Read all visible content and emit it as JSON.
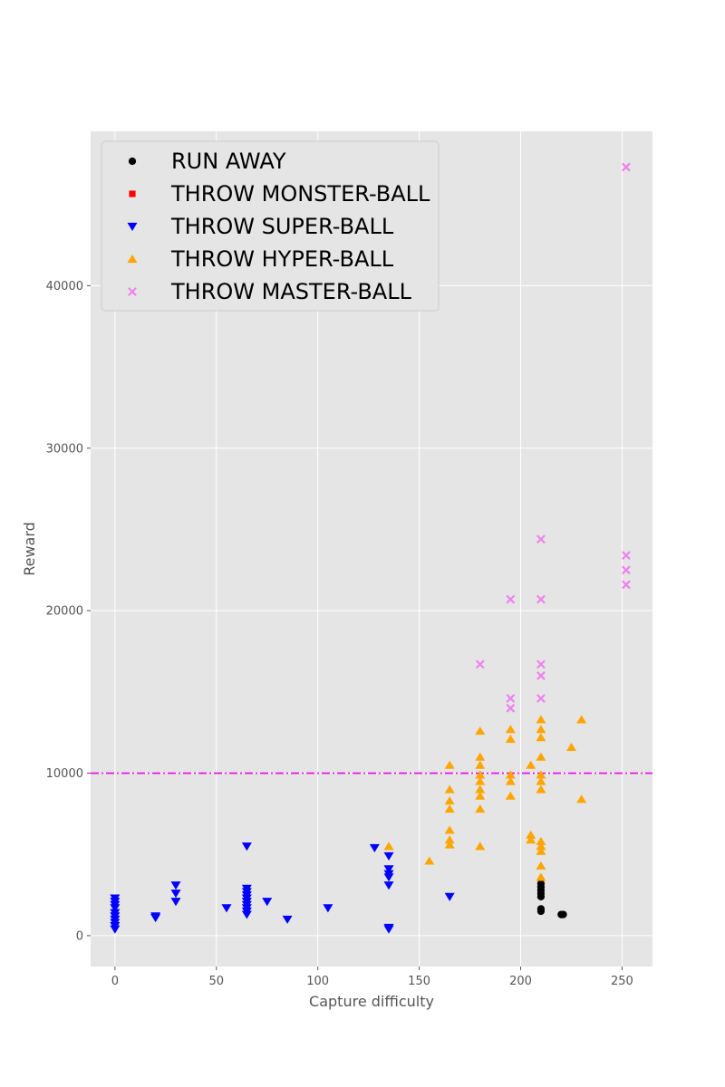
{
  "chart_data": {
    "type": "scatter",
    "title": "",
    "xlabel": "Capture difficulty",
    "ylabel": "Reward",
    "xlim": [
      -12,
      265
    ],
    "ylim": [
      -1900,
      49500
    ],
    "xticks": [
      0,
      50,
      100,
      150,
      200,
      250
    ],
    "yticks": [
      0,
      10000,
      20000,
      30000,
      40000
    ],
    "grid": true,
    "legend_position": "top-left",
    "reference_line": {
      "y": 10000,
      "style": "dash-dot",
      "color": "#ee00ee"
    },
    "series": [
      {
        "name": "RUN AWAY",
        "marker": "circle",
        "color": "#000000",
        "points": [
          [
            210,
            3200
          ],
          [
            210,
            3000
          ],
          [
            210,
            2800
          ],
          [
            210,
            2600
          ],
          [
            210,
            2400
          ],
          [
            210,
            1650
          ],
          [
            210,
            1500
          ],
          [
            220,
            1300
          ],
          [
            221,
            1300
          ]
        ]
      },
      {
        "name": "THROW MONSTER-BALL",
        "marker": "square",
        "color": "#ff0000",
        "points": []
      },
      {
        "name": "THROW SUPER-BALL",
        "marker": "triangle-down",
        "color": "#0000ff",
        "points": [
          [
            0,
            2300
          ],
          [
            0,
            2100
          ],
          [
            0,
            1900
          ],
          [
            0,
            1700
          ],
          [
            0,
            1400
          ],
          [
            0,
            1200
          ],
          [
            0,
            1000
          ],
          [
            0,
            800
          ],
          [
            0,
            600
          ],
          [
            0,
            400
          ],
          [
            20,
            1200
          ],
          [
            20,
            1100
          ],
          [
            30,
            3100
          ],
          [
            30,
            2600
          ],
          [
            30,
            2100
          ],
          [
            55,
            1700
          ],
          [
            65,
            5500
          ],
          [
            65,
            2900
          ],
          [
            65,
            2700
          ],
          [
            65,
            2500
          ],
          [
            65,
            2300
          ],
          [
            65,
            2100
          ],
          [
            65,
            1900
          ],
          [
            65,
            1700
          ],
          [
            65,
            1500
          ],
          [
            65,
            1300
          ],
          [
            75,
            2100
          ],
          [
            85,
            1000
          ],
          [
            105,
            1700
          ],
          [
            128,
            5400
          ],
          [
            135,
            4900
          ],
          [
            135,
            4100
          ],
          [
            135,
            3800
          ],
          [
            135,
            3600
          ],
          [
            135,
            3100
          ],
          [
            135,
            500
          ],
          [
            135,
            400
          ],
          [
            165,
            2400
          ]
        ]
      },
      {
        "name": "THROW HYPER-BALL",
        "marker": "triangle-up",
        "color": "#ffa500",
        "points": [
          [
            135,
            5500
          ],
          [
            155,
            4600
          ],
          [
            165,
            10500
          ],
          [
            165,
            9000
          ],
          [
            165,
            8300
          ],
          [
            165,
            7800
          ],
          [
            165,
            6500
          ],
          [
            165,
            5900
          ],
          [
            165,
            5600
          ],
          [
            180,
            12600
          ],
          [
            180,
            11000
          ],
          [
            180,
            10500
          ],
          [
            180,
            9900
          ],
          [
            180,
            9500
          ],
          [
            180,
            9000
          ],
          [
            180,
            8600
          ],
          [
            180,
            7800
          ],
          [
            180,
            5500
          ],
          [
            195,
            12700
          ],
          [
            195,
            12100
          ],
          [
            195,
            9900
          ],
          [
            195,
            9500
          ],
          [
            195,
            8600
          ],
          [
            205,
            10500
          ],
          [
            205,
            6200
          ],
          [
            205,
            5900
          ],
          [
            210,
            13300
          ],
          [
            210,
            12700
          ],
          [
            210,
            12200
          ],
          [
            210,
            11000
          ],
          [
            210,
            9900
          ],
          [
            210,
            9500
          ],
          [
            210,
            9000
          ],
          [
            210,
            5800
          ],
          [
            210,
            5500
          ],
          [
            210,
            5200
          ],
          [
            210,
            4300
          ],
          [
            210,
            3600
          ],
          [
            225,
            11600
          ],
          [
            230,
            13300
          ],
          [
            230,
            8400
          ]
        ]
      },
      {
        "name": "THROW MASTER-BALL",
        "marker": "x",
        "color": "#ee82ee",
        "points": [
          [
            180,
            16700
          ],
          [
            195,
            20700
          ],
          [
            195,
            14600
          ],
          [
            195,
            14000
          ],
          [
            210,
            24400
          ],
          [
            210,
            20700
          ],
          [
            210,
            16700
          ],
          [
            210,
            16000
          ],
          [
            210,
            14600
          ],
          [
            252,
            47300
          ],
          [
            252,
            23400
          ],
          [
            252,
            22500
          ],
          [
            252,
            21600
          ]
        ]
      }
    ]
  }
}
